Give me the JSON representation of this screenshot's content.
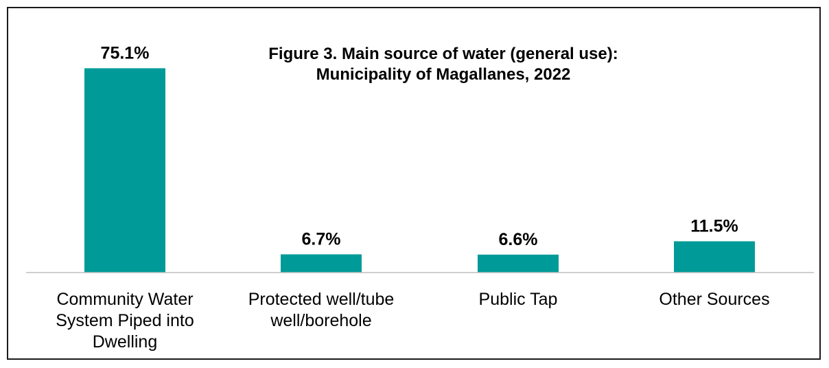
{
  "chart_data": {
    "type": "bar",
    "title": "Figure 3. Main source of water (general use):",
    "subtitle": "Municipality of Magallanes, 2022",
    "categories": [
      [
        "Community Water",
        "System Piped into",
        "Dwelling"
      ],
      [
        "Protected well/tube",
        "well/borehole"
      ],
      [
        "Public Tap"
      ],
      [
        "Other Sources"
      ]
    ],
    "values": [
      75.1,
      6.7,
      6.6,
      11.5
    ],
    "data_labels": [
      "75.1%",
      "6.7%",
      "6.6%",
      "11.5%"
    ],
    "xlabel": "",
    "ylabel": "",
    "ylim": [
      0,
      80
    ],
    "grid": false,
    "legend": "none",
    "colors": {
      "bar": "#009b98",
      "axis": "#bfbfbf",
      "text": "#000000"
    }
  }
}
